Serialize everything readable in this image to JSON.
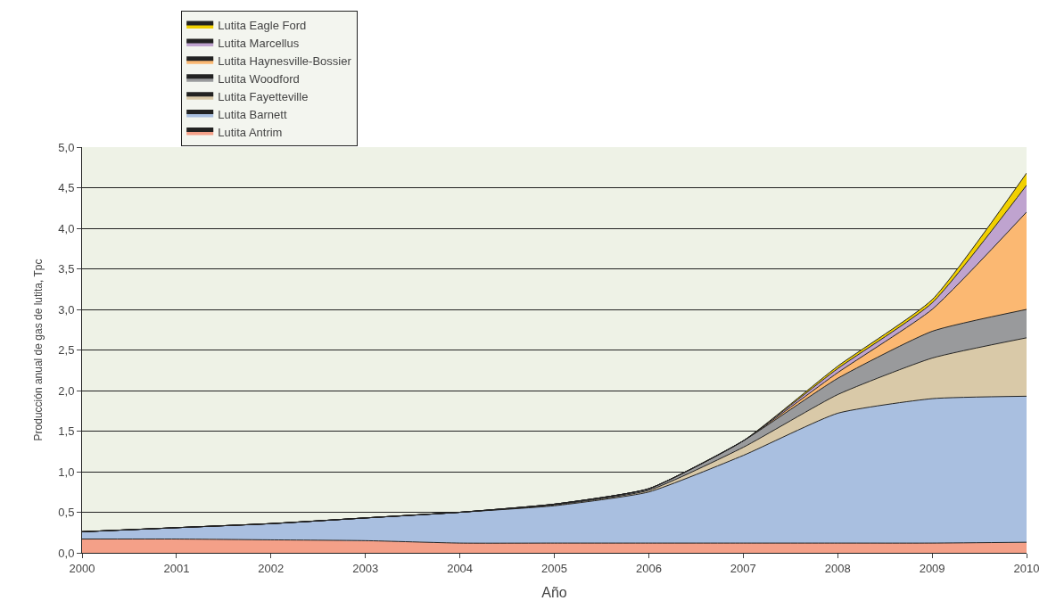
{
  "chart_data": {
    "type": "area",
    "stacked": true,
    "xlabel": "Año",
    "ylabel": "Producción anual de gas de lutita, Tpc",
    "x": [
      2000,
      2001,
      2002,
      2003,
      2004,
      2005,
      2006,
      2007,
      2008,
      2009,
      2010
    ],
    "series": [
      {
        "name": "Lutita Antrim",
        "color": "#f4a088",
        "values": [
          0.17,
          0.17,
          0.16,
          0.15,
          0.12,
          0.12,
          0.12,
          0.12,
          0.12,
          0.12,
          0.13
        ]
      },
      {
        "name": "Lutita Barnett",
        "color": "#a9bfe0",
        "values": [
          0.09,
          0.14,
          0.2,
          0.28,
          0.38,
          0.46,
          0.63,
          1.08,
          1.6,
          1.78,
          1.8
        ]
      },
      {
        "name": "Lutita Fayetteville",
        "color": "#d9c9a8",
        "values": [
          0,
          0,
          0,
          0,
          0,
          0.01,
          0.02,
          0.1,
          0.23,
          0.5,
          0.72
        ]
      },
      {
        "name": "Lutita Woodford",
        "color": "#999a9c",
        "values": [
          0,
          0,
          0,
          0,
          0,
          0.01,
          0.02,
          0.08,
          0.2,
          0.33,
          0.35
        ]
      },
      {
        "name": "Lutita Haynesville-Bossier",
        "color": "#fbb872",
        "values": [
          0,
          0,
          0,
          0,
          0,
          0,
          0,
          0,
          0.07,
          0.27,
          1.2
        ]
      },
      {
        "name": "Lutita Marcellus",
        "color": "#bfa3cf",
        "values": [
          0,
          0,
          0,
          0,
          0,
          0,
          0,
          0,
          0.05,
          0.08,
          0.33
        ]
      },
      {
        "name": "Lutita Eagle Ford",
        "color": "#f1d000",
        "values": [
          0,
          0,
          0,
          0,
          0,
          0,
          0,
          0,
          0.03,
          0.04,
          0.15
        ]
      }
    ],
    "xlim": [
      2000,
      2010
    ],
    "xticks": [
      2000,
      2001,
      2002,
      2003,
      2004,
      2005,
      2006,
      2007,
      2008,
      2009,
      2010
    ],
    "ylim": [
      0,
      5
    ],
    "yticks": [
      {
        "value": 0,
        "label": "0,0"
      },
      {
        "value": 0.5,
        "label": "0,5"
      },
      {
        "value": 1,
        "label": "1,0"
      },
      {
        "value": 1.5,
        "label": "1,5"
      },
      {
        "value": 2,
        "label": "2,0"
      },
      {
        "value": 2.5,
        "label": "2,5"
      },
      {
        "value": 3,
        "label": "3,0"
      },
      {
        "value": 3.5,
        "label": "3,5"
      },
      {
        "value": 4,
        "label": "4,0"
      },
      {
        "value": 4.5,
        "label": "4,5"
      },
      {
        "value": 5,
        "label": "5,0"
      }
    ],
    "grid": "y",
    "legend": "top left"
  }
}
